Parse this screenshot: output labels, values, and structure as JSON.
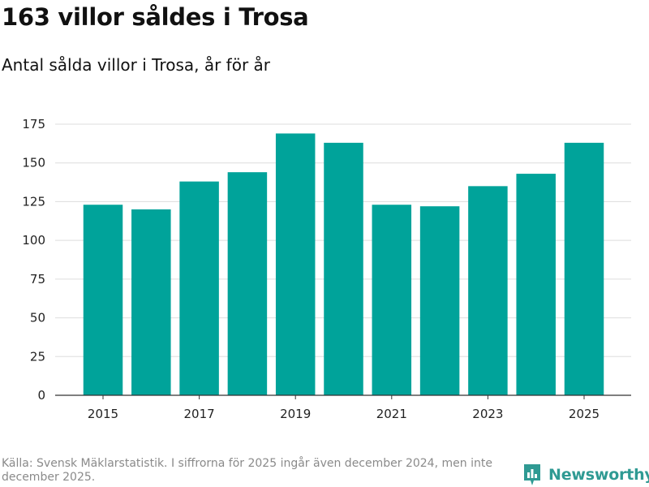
{
  "header": {
    "title": "163 villor såldes i Trosa",
    "subtitle": "Antal sålda villor i Trosa, år för år"
  },
  "footer": {
    "source": "Källa: Svensk Mäklarstatistik. I siffrorna för 2025 ingår även december 2024, men inte december 2025.",
    "logo_text": "Newsworthy"
  },
  "colors": {
    "bar": "#00a39a",
    "grid": "#dddddd",
    "axis": "#333333",
    "logo": "#2f9a93"
  },
  "chart_data": {
    "type": "bar",
    "title": "163 villor såldes i Trosa",
    "subtitle": "Antal sålda villor i Trosa, år för år",
    "xlabel": "",
    "ylabel": "",
    "categories": [
      "2015",
      "2016",
      "2017",
      "2018",
      "2019",
      "2020",
      "2021",
      "2022",
      "2023",
      "2024",
      "2025"
    ],
    "values": [
      123,
      120,
      138,
      144,
      169,
      163,
      123,
      122,
      135,
      143,
      163
    ],
    "x_tick_labels": [
      "2015",
      "2017",
      "2019",
      "2021",
      "2023",
      "2025"
    ],
    "y_ticks": [
      0,
      25,
      50,
      75,
      100,
      125,
      150,
      175
    ],
    "ylim": [
      0,
      175
    ],
    "grid": true,
    "legend": "none"
  }
}
